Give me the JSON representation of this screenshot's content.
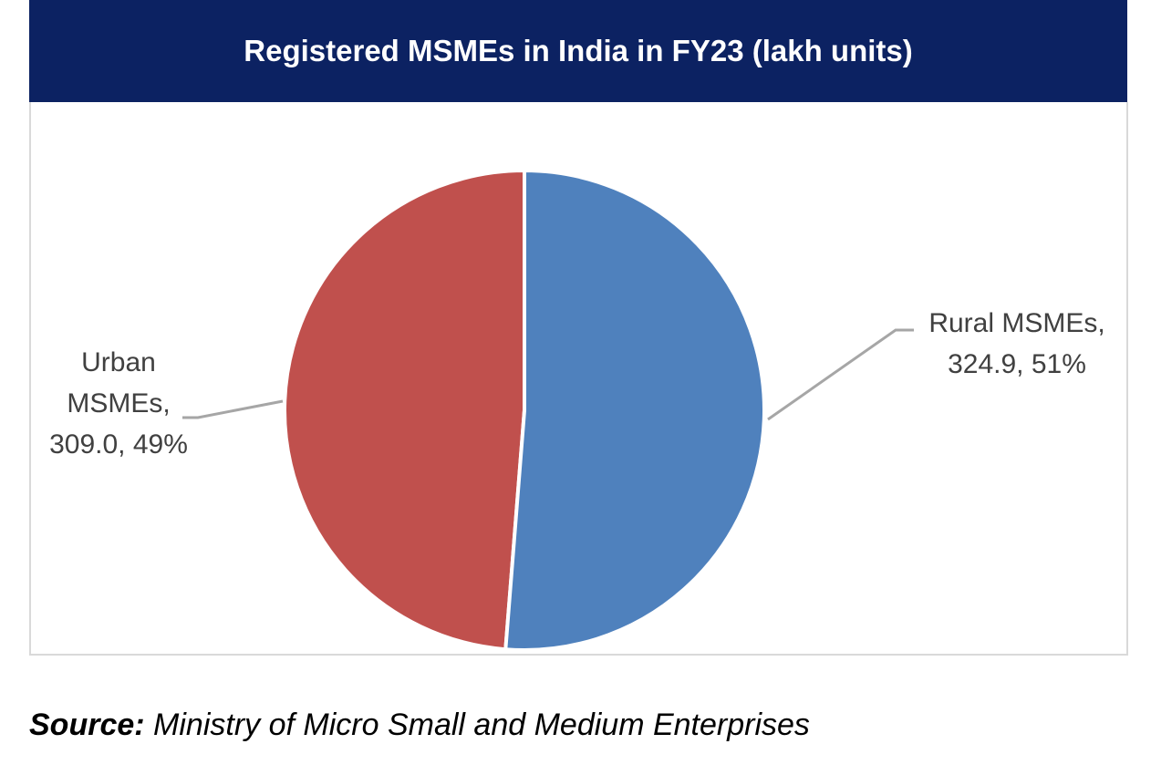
{
  "chart_data": {
    "type": "pie",
    "title": "Registered MSMEs in India in FY23 (lakh units)",
    "slices": [
      {
        "name": "Rural MSMEs",
        "value": 324.9,
        "percent": "51%",
        "label_lines": [
          "Rural MSMEs,",
          "324.9, 51%"
        ],
        "color": "#4f81bd"
      },
      {
        "name": "Urban MSMEs",
        "value": 309.0,
        "percent": "49%",
        "label_lines": [
          "Urban",
          "MSMEs,",
          "309.0, 49%"
        ],
        "color": "#c0504d"
      }
    ],
    "start_angle": "12 o'clock, clockwise"
  },
  "source": {
    "label": "Source:",
    "text": " Ministry of Micro Small and Medium Enterprises"
  }
}
